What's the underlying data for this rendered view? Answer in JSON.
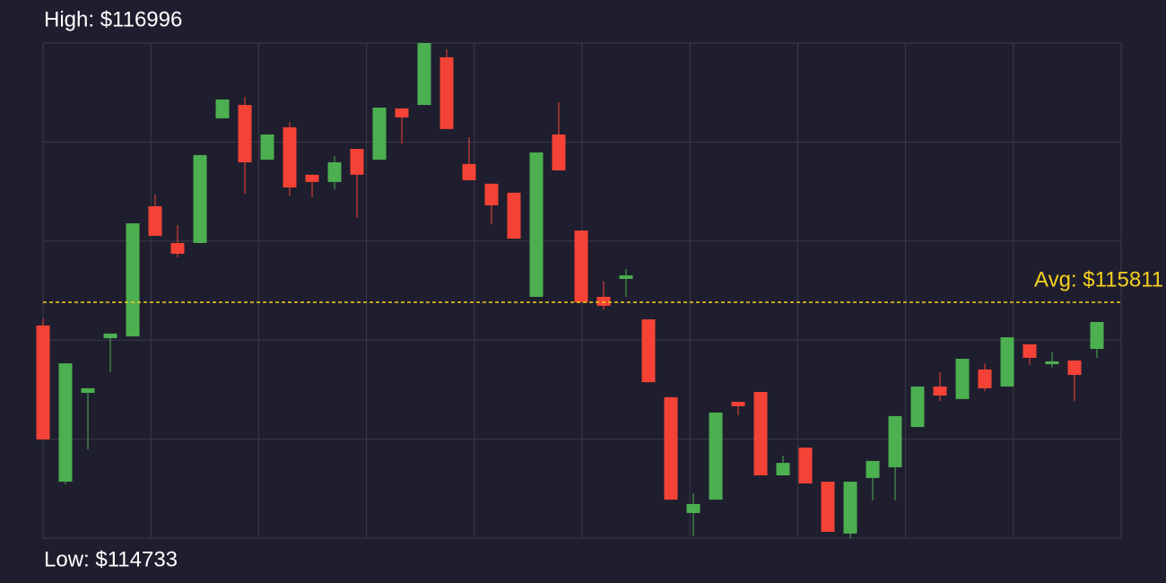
{
  "chart_data": {
    "type": "candlestick",
    "high_label": "High: $116996",
    "low_label": "Low: $114733",
    "avg_label": "Avg: $115811",
    "avg": 115811,
    "ylim": [
      114733,
      116996
    ],
    "up_color": "#4caf50",
    "down_color": "#f44336",
    "avg_color": "#f5d020",
    "open": [
      115705,
      114991,
      115397,
      115647,
      115655,
      116250,
      116082,
      116082,
      116652,
      116713,
      116463,
      116611,
      116394,
      116361,
      116512,
      116463,
      116697,
      116713,
      116931,
      116443,
      116353,
      116312,
      115836,
      116578,
      116139,
      115836,
      115918,
      115733,
      115377,
      114848,
      114909,
      115356,
      115401,
      115020,
      115147,
      114991,
      114754,
      115008,
      115057,
      115241,
      115426,
      115369,
      115504,
      115426,
      115619,
      115528,
      115545,
      115598
    ],
    "high": [
      115737,
      115532,
      115418,
      115668,
      116172,
      116303,
      116164,
      116484,
      116738,
      116750,
      116578,
      116635,
      116394,
      116480,
      116512,
      116701,
      116697,
      116996,
      116968,
      116566,
      116353,
      116312,
      116496,
      116726,
      116139,
      115906,
      115963,
      115733,
      115377,
      114938,
      115307,
      115356,
      115401,
      115110,
      115147,
      114991,
      114991,
      115086,
      115291,
      115426,
      115491,
      115553,
      115532,
      115651,
      115619,
      115582,
      115545,
      115721
    ],
    "low": [
      115184,
      114979,
      115139,
      115491,
      115655,
      116115,
      116016,
      116082,
      116652,
      116307,
      116463,
      116299,
      116291,
      116328,
      116197,
      116463,
      116537,
      116713,
      116603,
      116369,
      116168,
      116102,
      115836,
      116414,
      115811,
      115779,
      115836,
      115446,
      114909,
      114741,
      114909,
      115295,
      115020,
      115020,
      114983,
      114762,
      114733,
      114905,
      114905,
      115241,
      115360,
      115369,
      115405,
      115426,
      115524,
      115512,
      115360,
      115557
    ],
    "close": [
      115184,
      115532,
      115418,
      115668,
      116172,
      116115,
      116033,
      116484,
      116738,
      116451,
      116578,
      116336,
      116361,
      116451,
      116394,
      116701,
      116656,
      116996,
      116603,
      116369,
      116254,
      116102,
      116496,
      116414,
      115811,
      115795,
      115934,
      115446,
      114909,
      114889,
      115307,
      115336,
      115020,
      115077,
      114983,
      114762,
      114991,
      115086,
      115291,
      115426,
      115385,
      115553,
      115418,
      115651,
      115557,
      115541,
      115479,
      115721
    ]
  }
}
